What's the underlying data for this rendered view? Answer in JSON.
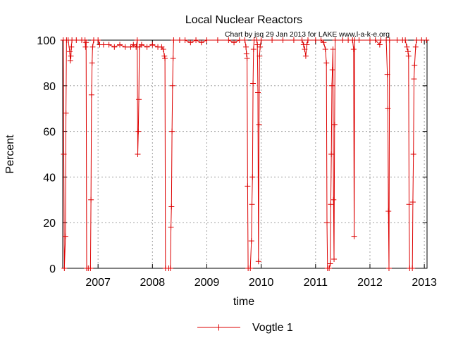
{
  "chart_data": {
    "type": "line",
    "title": "Local Nuclear Reactors",
    "credit": "Chart by jsq 29 Jan 2013 for LAKE www.l-a-k-e.org",
    "xlabel": "time",
    "ylabel": "Percent",
    "xlim": [
      2006.35,
      2013.05
    ],
    "ylim": [
      0,
      100
    ],
    "xticks": [
      {
        "label": "2007",
        "value": 2007
      },
      {
        "label": "2008",
        "value": 2008
      },
      {
        "label": "2009",
        "value": 2009
      },
      {
        "label": "2010",
        "value": 2010
      },
      {
        "label": "2011",
        "value": 2011
      },
      {
        "label": "2012",
        "value": 2012
      },
      {
        "label": "2013",
        "value": 2013
      }
    ],
    "yticks": [
      {
        "label": "0",
        "value": 0
      },
      {
        "label": "20",
        "value": 20
      },
      {
        "label": "40",
        "value": 40
      },
      {
        "label": "60",
        "value": 60
      },
      {
        "label": "80",
        "value": 80
      },
      {
        "label": "100",
        "value": 100
      }
    ],
    "grid": true,
    "legend_position": "bottom-center",
    "series": [
      {
        "name": "Vogtle 1",
        "color": "#dd0000",
        "points": [
          [
            2006.36,
            100
          ],
          [
            2006.37,
            50
          ],
          [
            2006.38,
            0
          ],
          [
            2006.4,
            14
          ],
          [
            2006.41,
            68
          ],
          [
            2006.42,
            100
          ],
          [
            2006.45,
            100
          ],
          [
            2006.48,
            95
          ],
          [
            2006.49,
            91
          ],
          [
            2006.5,
            93
          ],
          [
            2006.51,
            97
          ],
          [
            2006.52,
            100
          ],
          [
            2006.6,
            100
          ],
          [
            2006.7,
            100
          ],
          [
            2006.76,
            100
          ],
          [
            2006.77,
            97
          ],
          [
            2006.78,
            99
          ],
          [
            2006.79,
            0
          ],
          [
            2006.82,
            0
          ],
          [
            2006.86,
            0
          ],
          [
            2006.87,
            30
          ],
          [
            2006.88,
            76
          ],
          [
            2006.89,
            90
          ],
          [
            2006.9,
            97
          ],
          [
            2006.92,
            100
          ],
          [
            2007.0,
            100
          ],
          [
            2007.03,
            98
          ],
          [
            2007.1,
            98
          ],
          [
            2007.2,
            98
          ],
          [
            2007.3,
            97
          ],
          [
            2007.4,
            98
          ],
          [
            2007.5,
            97
          ],
          [
            2007.6,
            97
          ],
          [
            2007.65,
            98
          ],
          [
            2007.7,
            97
          ],
          [
            2007.72,
            100
          ],
          [
            2007.73,
            50
          ],
          [
            2007.74,
            60
          ],
          [
            2007.75,
            74
          ],
          [
            2007.76,
            97
          ],
          [
            2007.8,
            98
          ],
          [
            2007.9,
            97
          ],
          [
            2008.0,
            98
          ],
          [
            2008.1,
            97
          ],
          [
            2008.17,
            97
          ],
          [
            2008.2,
            96
          ],
          [
            2008.22,
            93
          ],
          [
            2008.23,
            92
          ],
          [
            2008.24,
            0
          ],
          [
            2008.3,
            0
          ],
          [
            2008.33,
            0
          ],
          [
            2008.34,
            18
          ],
          [
            2008.35,
            27
          ],
          [
            2008.36,
            60
          ],
          [
            2008.37,
            80
          ],
          [
            2008.38,
            92
          ],
          [
            2008.39,
            100
          ],
          [
            2008.5,
            100
          ],
          [
            2008.6,
            100
          ],
          [
            2008.7,
            99
          ],
          [
            2008.8,
            100
          ],
          [
            2008.9,
            99
          ],
          [
            2009.0,
            100
          ],
          [
            2009.2,
            100
          ],
          [
            2009.4,
            100
          ],
          [
            2009.5,
            99
          ],
          [
            2009.6,
            100
          ],
          [
            2009.7,
            100
          ],
          [
            2009.72,
            97
          ],
          [
            2009.73,
            94
          ],
          [
            2009.74,
            92
          ],
          [
            2009.75,
            36
          ],
          [
            2009.76,
            0
          ],
          [
            2009.8,
            0
          ],
          [
            2009.82,
            12
          ],
          [
            2009.83,
            28
          ],
          [
            2009.84,
            40
          ],
          [
            2009.85,
            81
          ],
          [
            2009.86,
            96
          ],
          [
            2009.87,
            100
          ],
          [
            2009.92,
            100
          ],
          [
            2009.93,
            98
          ],
          [
            2009.94,
            77
          ],
          [
            2009.95,
            3
          ],
          [
            2009.96,
            63
          ],
          [
            2009.97,
            93
          ],
          [
            2009.98,
            97
          ],
          [
            2010.0,
            100
          ],
          [
            2010.2,
            100
          ],
          [
            2010.4,
            100
          ],
          [
            2010.6,
            100
          ],
          [
            2010.75,
            100
          ],
          [
            2010.78,
            98
          ],
          [
            2010.8,
            96
          ],
          [
            2010.82,
            93
          ],
          [
            2010.84,
            98
          ],
          [
            2010.86,
            100
          ],
          [
            2011.0,
            100
          ],
          [
            2011.1,
            100
          ],
          [
            2011.15,
            99
          ],
          [
            2011.18,
            96
          ],
          [
            2011.2,
            90
          ],
          [
            2011.21,
            20
          ],
          [
            2011.22,
            0
          ],
          [
            2011.25,
            0
          ],
          [
            2011.27,
            2
          ],
          [
            2011.28,
            28
          ],
          [
            2011.29,
            50
          ],
          [
            2011.3,
            80
          ],
          [
            2011.31,
            87
          ],
          [
            2011.32,
            96
          ],
          [
            2011.33,
            30
          ],
          [
            2011.34,
            4
          ],
          [
            2011.35,
            63
          ],
          [
            2011.36,
            100
          ],
          [
            2011.5,
            100
          ],
          [
            2011.6,
            100
          ],
          [
            2011.68,
            100
          ],
          [
            2011.7,
            96
          ],
          [
            2011.71,
            14
          ],
          [
            2011.72,
            100
          ],
          [
            2011.8,
            100
          ],
          [
            2012.0,
            100
          ],
          [
            2012.1,
            100
          ],
          [
            2012.18,
            98
          ],
          [
            2012.2,
            100
          ],
          [
            2012.3,
            100
          ],
          [
            2012.32,
            85
          ],
          [
            2012.33,
            70
          ],
          [
            2012.34,
            25
          ],
          [
            2012.35,
            0
          ],
          [
            2012.36,
            100
          ],
          [
            2012.5,
            100
          ],
          [
            2012.6,
            100
          ],
          [
            2012.65,
            100
          ],
          [
            2012.68,
            97
          ],
          [
            2012.7,
            95
          ],
          [
            2012.71,
            93
          ],
          [
            2012.72,
            28
          ],
          [
            2012.73,
            0
          ],
          [
            2012.78,
            0
          ],
          [
            2012.79,
            29
          ],
          [
            2012.8,
            50
          ],
          [
            2012.81,
            83
          ],
          [
            2012.82,
            89
          ],
          [
            2012.84,
            97
          ],
          [
            2012.86,
            100
          ],
          [
            2012.95,
            100
          ],
          [
            2013.04,
            100
          ]
        ]
      }
    ]
  }
}
